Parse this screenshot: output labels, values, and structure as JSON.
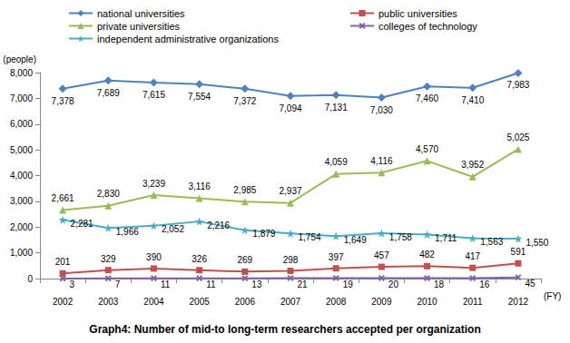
{
  "chart_data": {
    "type": "line",
    "title": "Graph4: Number of mid-to long-term researchers accepted per organization",
    "xlabel": "(FY)",
    "ylabel": "(people)",
    "categories": [
      "2002",
      "2003",
      "2004",
      "2005",
      "2006",
      "2007",
      "2008",
      "2009",
      "2010",
      "2011",
      "2012"
    ],
    "ylim": [
      0,
      8000
    ],
    "yticks": [
      0,
      {
        "value": 1000,
        "label": "1,000"
      },
      {
        "value": 2000,
        "label": "2,000"
      },
      {
        "value": 3000,
        "label": "3,000"
      },
      {
        "value": 4000,
        "label": "4,000"
      },
      {
        "value": 5000,
        "label": "5,000"
      },
      {
        "value": 6000,
        "label": "6,000"
      },
      {
        "value": 7000,
        "label": "7,000"
      },
      {
        "value": 8000,
        "label": "8,000"
      }
    ],
    "grid": false,
    "legend": "top",
    "data_labels": true,
    "series": [
      {
        "name": "national universities",
        "color": "#4f81bd",
        "marker": "diamond",
        "values": [
          7378,
          7689,
          7615,
          7554,
          7372,
          7094,
          7131,
          7030,
          7460,
          7410,
          7983
        ],
        "value_labels": [
          "7,378",
          "7,689",
          "7,615",
          "7,554",
          "7,372",
          "7,094",
          "7,131",
          "7,030",
          "7,460",
          "7,410",
          "7,983"
        ]
      },
      {
        "name": "public universities",
        "color": "#c0504d",
        "marker": "square",
        "values": [
          201,
          329,
          390,
          326,
          269,
          298,
          397,
          457,
          482,
          417,
          591
        ],
        "value_labels": [
          "201",
          "329",
          "390",
          "326",
          "269",
          "298",
          "397",
          "457",
          "482",
          "417",
          "591"
        ]
      },
      {
        "name": "private universities",
        "color": "#9bbb59",
        "marker": "triangle",
        "values": [
          2661,
          2830,
          3239,
          3116,
          2985,
          2937,
          4059,
          4116,
          4570,
          3952,
          5025
        ],
        "value_labels": [
          "2,661",
          "2,830",
          "3,239",
          "3,116",
          "2,985",
          "2,937",
          "4,059",
          "4,116",
          "4,570",
          "3,952",
          "5,025"
        ]
      },
      {
        "name": "colleges of technology",
        "color": "#8064a2",
        "marker": "x",
        "values": [
          3,
          7,
          11,
          11,
          13,
          21,
          19,
          20,
          18,
          16,
          45
        ],
        "value_labels": [
          "3",
          "7",
          "11",
          "11",
          "13",
          "21",
          "19",
          "20",
          "18",
          "16",
          "45"
        ]
      },
      {
        "name": "independent administrative organizations",
        "color": "#4bacc6",
        "marker": "star",
        "values": [
          2281,
          1966,
          2052,
          2216,
          1879,
          1754,
          1649,
          1758,
          1711,
          1563,
          1550
        ],
        "value_labels": [
          "2,281",
          "1,966",
          "2,052",
          "2,216",
          "1,879",
          "1,754",
          "1,649",
          "1,758",
          "1,711",
          "1,563",
          "1,550"
        ]
      }
    ]
  }
}
